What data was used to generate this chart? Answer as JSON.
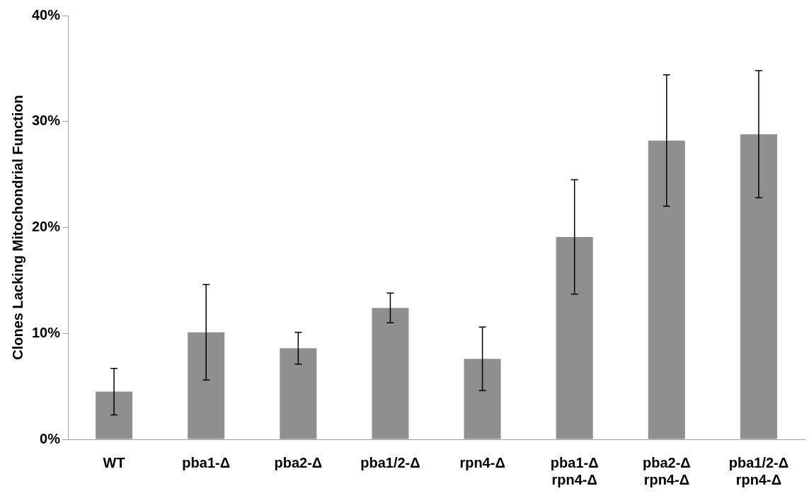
{
  "chart_data": {
    "type": "bar",
    "ylabel": "Clones Lacking Mitochondrial Function",
    "categories": [
      "WT",
      "pba1-Δ",
      "pba2-Δ",
      "pba1/2-Δ",
      "rpn4-Δ",
      "pba1-Δ\nrpn4-Δ",
      "pba2-Δ\nrpn4-Δ",
      "pba1/2-Δ\nrpn4-Δ"
    ],
    "values": [
      4.5,
      10.1,
      8.6,
      12.4,
      7.6,
      19.1,
      28.2,
      28.8
    ],
    "errors": [
      2.2,
      4.5,
      1.5,
      1.4,
      3.0,
      5.4,
      6.2,
      6.0
    ],
    "color": "#8f8f8f",
    "ylim": [
      0,
      40
    ],
    "yticks": [
      {
        "value": 0,
        "label": "0%"
      },
      {
        "value": 10,
        "label": "10%"
      },
      {
        "value": 20,
        "label": "20%"
      },
      {
        "value": 30,
        "label": "30%"
      },
      {
        "value": 40,
        "label": "40%"
      }
    ],
    "grid": false,
    "legend": false
  }
}
